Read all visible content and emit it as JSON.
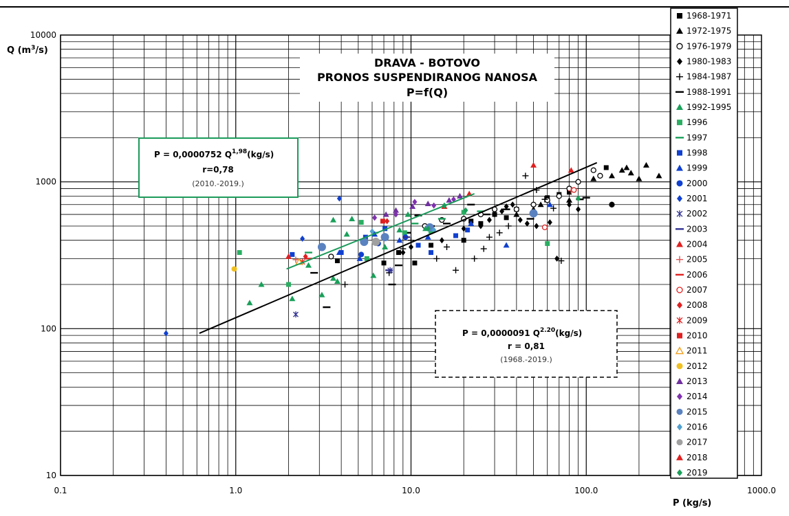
{
  "chart_data": {
    "type": "scatter",
    "title": [
      "DRAVA - BOTOVO",
      "PRONOS SUSPENDIRANOG NANOSA",
      "P=f(Q)"
    ],
    "xlabel": "P (kg/s)",
    "ylabel_main": "Q (m",
    "ylabel_sup": "3",
    "ylabel_tail": "/s)",
    "x_scale": "log",
    "y_scale": "log",
    "xlim": [
      0.1,
      1000
    ],
    "ylim": [
      10,
      10000
    ],
    "grid": true,
    "x_ticks": [
      {
        "value": 0.1,
        "label": "0.1"
      },
      {
        "value": 1,
        "label": "1.0"
      },
      {
        "value": 10,
        "label": "10.0"
      },
      {
        "value": 100,
        "label": "100.0"
      },
      {
        "value": 1000,
        "label": "1000.0"
      }
    ],
    "y_ticks": [
      {
        "value": 10,
        "label": "10"
      },
      {
        "value": 100,
        "label": "100"
      },
      {
        "value": 1000,
        "label": "1000"
      },
      {
        "value": 10000,
        "label": "10000"
      }
    ],
    "legend_placement": "right",
    "fit_lines": [
      {
        "color": "#000000",
        "x": [
          0.62,
          115
        ],
        "y": [
          93,
          1350
        ]
      },
      {
        "color": "#1a9a5a",
        "x": [
          1.95,
          23
        ],
        "y": [
          255,
          830
        ]
      }
    ],
    "annotations": {
      "green": {
        "eq_main": "P = 0,0000752  Q",
        "eq_sup": "1,98",
        "eq_tail": "(kg/s)",
        "r": "r=0,78",
        "period": "(2010.-2019.)"
      },
      "black": {
        "eq_main": "P = 0,0000091  Q",
        "eq_sup": "2.20",
        "eq_tail": "(kg/s)",
        "r": "r = 0,81",
        "period": "(1968.-2019.)"
      }
    },
    "series": [
      {
        "name": "1968-1971",
        "marker": "square",
        "color": "#000000",
        "points": [
          [
            3.8,
            290
          ],
          [
            7,
            280
          ],
          [
            8.5,
            330
          ],
          [
            10.5,
            280
          ],
          [
            13,
            370
          ],
          [
            20,
            400
          ],
          [
            22,
            540
          ],
          [
            25,
            520
          ],
          [
            30,
            600
          ],
          [
            35,
            570
          ],
          [
            40,
            650
          ],
          [
            60,
            780
          ],
          [
            70,
            820
          ],
          [
            80,
            850
          ],
          [
            130,
            1250
          ]
        ]
      },
      {
        "name": "1972-1975",
        "marker": "triangle",
        "color": "#000000",
        "points": [
          [
            40,
            600
          ],
          [
            50,
            650
          ],
          [
            55,
            700
          ],
          [
            80,
            750
          ],
          [
            140,
            1100
          ],
          [
            160,
            1200
          ],
          [
            180,
            1150
          ],
          [
            200,
            1050
          ],
          [
            220,
            1300
          ],
          [
            260,
            1100
          ],
          [
            170,
            1250
          ],
          [
            110,
            1050
          ]
        ]
      },
      {
        "name": "1976-1979",
        "marker": "circle-open",
        "color": "#000000",
        "points": [
          [
            3.5,
            310
          ],
          [
            12,
            500
          ],
          [
            15,
            550
          ],
          [
            20,
            560
          ],
          [
            25,
            600
          ],
          [
            30,
            650
          ],
          [
            40,
            650
          ],
          [
            50,
            700
          ],
          [
            60,
            750
          ],
          [
            70,
            800
          ],
          [
            80,
            900
          ],
          [
            90,
            1000
          ],
          [
            110,
            1200
          ],
          [
            120,
            1100
          ],
          [
            140,
            700
          ]
        ]
      },
      {
        "name": "1980-1983",
        "marker": "diamond",
        "color": "#000000",
        "points": [
          [
            9,
            330
          ],
          [
            10,
            360
          ],
          [
            15,
            400
          ],
          [
            20,
            480
          ],
          [
            25,
            500
          ],
          [
            28,
            550
          ],
          [
            30,
            600
          ],
          [
            33,
            630
          ],
          [
            35,
            680
          ],
          [
            38,
            700
          ],
          [
            42,
            550
          ],
          [
            46,
            520
          ],
          [
            52,
            500
          ],
          [
            62,
            530
          ],
          [
            68,
            300
          ],
          [
            80,
            700
          ],
          [
            90,
            650
          ],
          [
            140,
            700
          ]
        ]
      },
      {
        "name": "1984-1987",
        "marker": "plus",
        "color": "#000000",
        "points": [
          [
            4.2,
            200
          ],
          [
            7.5,
            240
          ],
          [
            9,
            350
          ],
          [
            10,
            400
          ],
          [
            14,
            300
          ],
          [
            16,
            360
          ],
          [
            18,
            250
          ],
          [
            23,
            300
          ],
          [
            26,
            350
          ],
          [
            28,
            420
          ],
          [
            32,
            450
          ],
          [
            36,
            500
          ],
          [
            45,
            1100
          ],
          [
            52,
            880
          ],
          [
            58,
            760
          ],
          [
            72,
            290
          ],
          [
            65,
            660
          ]
        ]
      },
      {
        "name": "1988-1991",
        "marker": "dash",
        "color": "#000000",
        "points": [
          [
            2.8,
            240
          ],
          [
            3.3,
            140
          ],
          [
            7.8,
            200
          ],
          [
            8.5,
            270
          ],
          [
            9.5,
            450
          ],
          [
            11,
            590
          ],
          [
            13,
            500
          ],
          [
            16,
            520
          ],
          [
            22,
            700
          ],
          [
            27,
            600
          ],
          [
            35,
            650
          ],
          [
            48,
            560
          ],
          [
            92,
            760
          ],
          [
            100,
            780
          ]
        ]
      },
      {
        "name": "1992-1995",
        "marker": "triangle",
        "color": "#1aa05a",
        "points": [
          [
            1.2,
            150
          ],
          [
            1.4,
            200
          ],
          [
            2.1,
            160
          ],
          [
            2.6,
            270
          ],
          [
            3.1,
            170
          ],
          [
            3.6,
            220
          ],
          [
            3.8,
            210
          ],
          [
            4.3,
            440
          ],
          [
            4.6,
            560
          ],
          [
            6.1,
            230
          ],
          [
            7.1,
            360
          ],
          [
            8.6,
            470
          ],
          [
            9.6,
            600
          ],
          [
            12.1,
            480
          ],
          [
            3.6,
            550
          ]
        ]
      },
      {
        "name": "1996",
        "marker": "square",
        "color": "#2aae62",
        "points": [
          [
            1.05,
            330
          ],
          [
            2.0,
            200
          ],
          [
            5.2,
            530
          ],
          [
            5.6,
            300
          ],
          [
            9.2,
            450
          ],
          [
            13,
            460
          ],
          [
            20,
            620
          ],
          [
            60,
            380
          ]
        ]
      },
      {
        "name": "1997",
        "marker": "dash",
        "color": "#1aa05a",
        "points": [
          [
            2.6,
            330
          ],
          [
            6.2,
            450
          ],
          [
            10.5,
            520
          ],
          [
            15,
            560
          ],
          [
            25,
            630
          ]
        ]
      },
      {
        "name": "1998",
        "marker": "square",
        "color": "#1040d0",
        "points": [
          [
            2.1,
            320
          ],
          [
            4.0,
            330
          ],
          [
            5.5,
            420
          ],
          [
            7.1,
            480
          ],
          [
            11,
            370
          ],
          [
            13,
            330
          ],
          [
            18,
            430
          ],
          [
            21,
            470
          ]
        ]
      },
      {
        "name": "1999",
        "marker": "triangle",
        "color": "#1040d0",
        "points": [
          [
            3.9,
            330
          ],
          [
            5.1,
            300
          ],
          [
            6.2,
            440
          ],
          [
            8.6,
            400
          ],
          [
            12.5,
            420
          ],
          [
            22,
            520
          ],
          [
            35,
            370
          ],
          [
            62,
            700
          ]
        ]
      },
      {
        "name": "2000",
        "marker": "circle",
        "color": "#1040d0",
        "points": [
          [
            5.2,
            320
          ],
          [
            6.5,
            380
          ],
          [
            9.3,
            420
          ]
        ]
      },
      {
        "name": "2001",
        "marker": "diamond",
        "color": "#1040d0",
        "points": [
          [
            0.4,
            93
          ],
          [
            2.4,
            410
          ],
          [
            3.9,
            770
          ]
        ]
      },
      {
        "name": "2002",
        "marker": "asterisk",
        "color": "#303090",
        "points": [
          [
            2.2,
            125
          ],
          [
            7.6,
            250
          ]
        ]
      },
      {
        "name": "2003",
        "marker": "dash",
        "color": "#303090",
        "points": [
          [
            7.5,
            250
          ],
          [
            9.4,
            420
          ]
        ]
      },
      {
        "name": "2004",
        "marker": "triangle",
        "color": "#e02020",
        "points": [
          [
            2.0,
            310
          ],
          [
            50,
            1300
          ],
          [
            82,
            1200
          ]
        ]
      },
      {
        "name": "2005",
        "marker": "plus",
        "color": "#e05050",
        "points": [
          [
            2.2,
            295
          ],
          [
            82,
            870
          ]
        ]
      },
      {
        "name": "2006",
        "marker": "dash",
        "color": "#e02020",
        "points": [
          [
            2.6,
            300
          ]
        ]
      },
      {
        "name": "2007",
        "marker": "circle-open",
        "color": "#e02020",
        "points": [
          [
            58,
            490
          ],
          [
            85,
            880
          ]
        ]
      },
      {
        "name": "2008",
        "marker": "diamond",
        "color": "#e02020",
        "points": [
          [
            2.5,
            310
          ],
          [
            7.3,
            540
          ]
        ]
      },
      {
        "name": "2009",
        "marker": "asterisk",
        "color": "#e02020",
        "points": [
          [
            2.4,
            285
          ]
        ]
      },
      {
        "name": "2010",
        "marker": "square",
        "color": "#e02020",
        "points": [
          [
            6.9,
            540
          ]
        ]
      },
      {
        "name": "2011",
        "marker": "triangle-open",
        "color": "#f0a020",
        "points": [
          [
            2.3,
            285
          ]
        ]
      },
      {
        "name": "2012",
        "marker": "circle",
        "color": "#f0c020",
        "points": [
          [
            0.98,
            255
          ]
        ]
      },
      {
        "name": "2013",
        "marker": "triangle",
        "color": "#7030a0",
        "points": [
          [
            7.2,
            600
          ],
          [
            8.2,
            640
          ],
          [
            10.2,
            680
          ],
          [
            12.5,
            710
          ],
          [
            16.5,
            750
          ],
          [
            19,
            800
          ]
        ]
      },
      {
        "name": "2014",
        "marker": "diamond",
        "color": "#8030b0",
        "points": [
          [
            6.2,
            570
          ],
          [
            8.2,
            600
          ],
          [
            10.5,
            730
          ],
          [
            13.5,
            690
          ],
          [
            17.5,
            760
          ]
        ]
      },
      {
        "name": "2015",
        "marker": "circle",
        "color": "#5a82c0",
        "points": [
          [
            3.1,
            360
          ],
          [
            5.4,
            390
          ],
          [
            7.1,
            420
          ],
          [
            12.8,
            490
          ],
          [
            50,
            610
          ]
        ]
      },
      {
        "name": "2016",
        "marker": "diamond",
        "color": "#50a0d0",
        "points": [
          [
            6.0,
            460
          ],
          [
            13.5,
            470
          ]
        ]
      },
      {
        "name": "2017",
        "marker": "circle",
        "color": "#a0a0a0",
        "points": [
          [
            6.3,
            390
          ]
        ]
      },
      {
        "name": "2018",
        "marker": "triangle",
        "color": "#e02020",
        "points": [
          [
            15.5,
            680
          ],
          [
            21.5,
            830
          ]
        ]
      },
      {
        "name": "2019",
        "marker": "diamond",
        "color": "#1aa05a",
        "points": [
          [
            12.5,
            480
          ],
          [
            15.5,
            690
          ],
          [
            20.5,
            640
          ],
          [
            90,
            770
          ]
        ]
      }
    ]
  }
}
